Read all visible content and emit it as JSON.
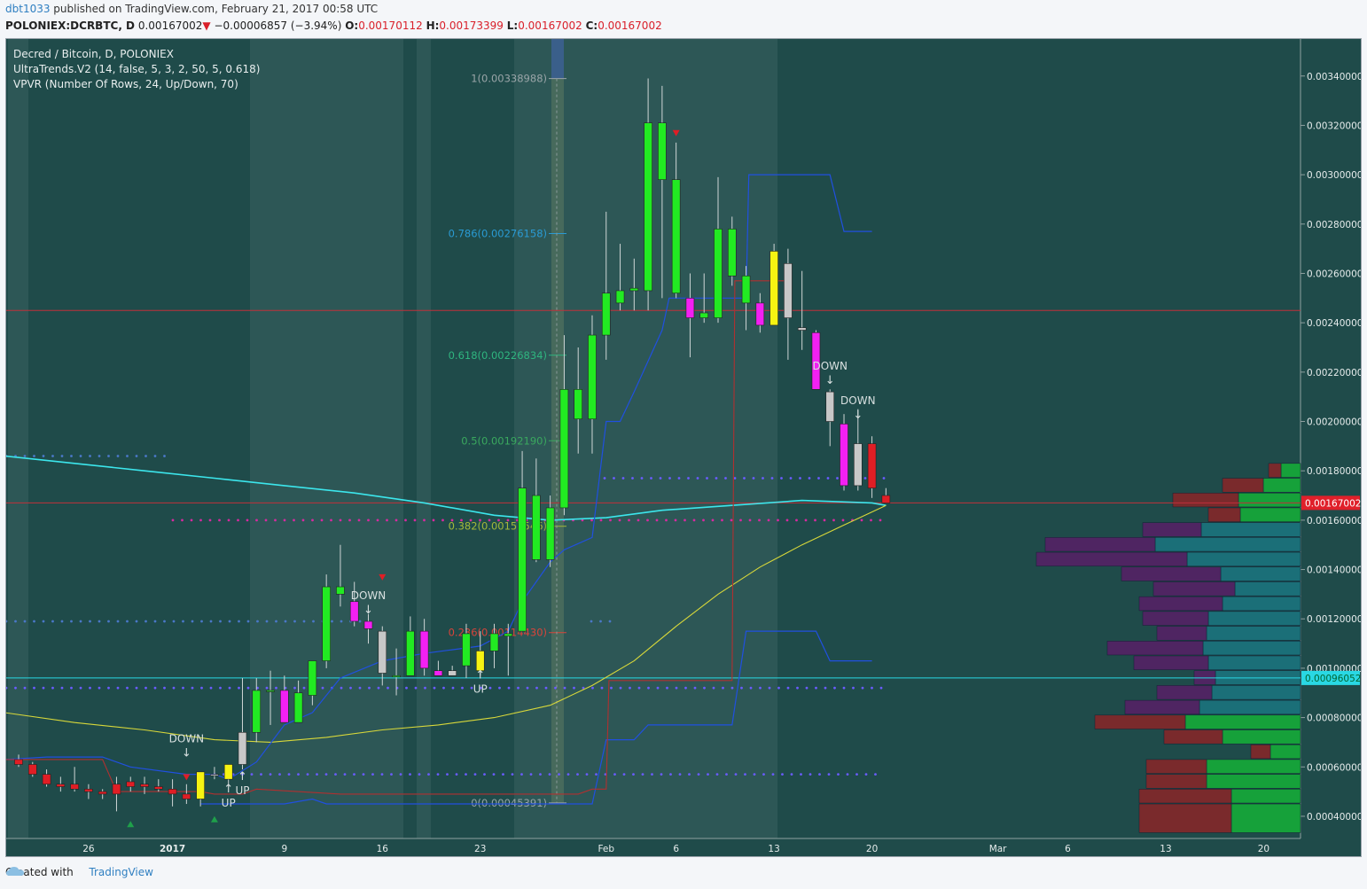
{
  "header": {
    "user": "dbt1033",
    "published_text": " published on TradingView.com, February 21, 2017 00:58 UTC"
  },
  "ohlc": {
    "symbol": "POLONIEX:DCRBTC, D",
    "last": "0.00167002",
    "change": "−0.00006857 (−3.94%)",
    "o_label": "O:",
    "o": "0.00170112",
    "h_label": "H:",
    "h": "0.00173399",
    "l_label": "L:",
    "l": "0.00167002",
    "c_label": "C:",
    "c": "0.00167002",
    "down_color": "#d9202a"
  },
  "legend": {
    "line1": "Decred / Bitcoin, D, POLONIEX",
    "line2": "UltraTrends.V2 (14, false, 5, 3, 2, 50, 5, 0.618)",
    "line3": "VPVR (Number Of Rows, 24, Up/Down, 70)"
  },
  "footer": {
    "created_with": "Created with",
    "brand": "TradingView"
  },
  "chart_data": {
    "type": "candlestick",
    "y_axis": {
      "min": 0.00031,
      "max": 0.00355,
      "ticks": [
        "0.00340000",
        "0.00320000",
        "0.00300000",
        "0.00280000",
        "0.00260000",
        "0.00240000",
        "0.00220000",
        "0.00200000",
        "0.00180000",
        "0.00160000",
        "0.00140000",
        "0.00120000",
        "0.00100000",
        "0.00080000",
        "0.00060000",
        "0.00040000"
      ],
      "current_price_label": "0.00167002",
      "line_price_label": "0.00096052",
      "current_price_color": "#e0202a",
      "line_price_color": "#29d8e4"
    },
    "x_axis": {
      "labels": [
        {
          "text": "26",
          "day": 5
        },
        {
          "text": "2017",
          "day": 11,
          "bold": true
        },
        {
          "text": "9",
          "day": 19
        },
        {
          "text": "16",
          "day": 26
        },
        {
          "text": "23",
          "day": 33
        },
        {
          "text": "Feb",
          "day": 42
        },
        {
          "text": "6",
          "day": 47
        },
        {
          "text": "13",
          "day": 54
        },
        {
          "text": "20",
          "day": 61
        },
        {
          "text": "Mar",
          "day": 70
        },
        {
          "text": "6",
          "day": 75
        },
        {
          "text": "13",
          "day": 82
        },
        {
          "text": "20",
          "day": 89
        }
      ]
    },
    "candles": [
      {
        "d": 0,
        "o": 0.00063,
        "h": 0.00065,
        "l": 0.0006,
        "c": 0.00061,
        "col": "red"
      },
      {
        "d": 1,
        "o": 0.00061,
        "h": 0.00062,
        "l": 0.00056,
        "c": 0.00057,
        "col": "red"
      },
      {
        "d": 2,
        "o": 0.00057,
        "h": 0.00059,
        "l": 0.00052,
        "c": 0.00053,
        "col": "red"
      },
      {
        "d": 3,
        "o": 0.00053,
        "h": 0.00056,
        "l": 0.0005,
        "c": 0.00052,
        "col": "red"
      },
      {
        "d": 4,
        "o": 0.00053,
        "h": 0.0006,
        "l": 0.0005,
        "c": 0.00051,
        "col": "red"
      },
      {
        "d": 5,
        "o": 0.00051,
        "h": 0.00053,
        "l": 0.00047,
        "c": 0.0005,
        "col": "red"
      },
      {
        "d": 6,
        "o": 0.0005,
        "h": 0.00051,
        "l": 0.00047,
        "c": 0.00049,
        "col": "red"
      },
      {
        "d": 7,
        "o": 0.00053,
        "h": 0.00056,
        "l": 0.00042,
        "c": 0.00049,
        "col": "red"
      },
      {
        "d": 8,
        "o": 0.00052,
        "h": 0.00056,
        "l": 0.0005,
        "c": 0.00054,
        "col": "red"
      },
      {
        "d": 9,
        "o": 0.00053,
        "h": 0.00056,
        "l": 0.00049,
        "c": 0.00052,
        "col": "red"
      },
      {
        "d": 10,
        "o": 0.00052,
        "h": 0.00055,
        "l": 0.0005,
        "c": 0.00051,
        "col": "red"
      },
      {
        "d": 11,
        "o": 0.00051,
        "h": 0.00055,
        "l": 0.00044,
        "c": 0.00049,
        "col": "red"
      },
      {
        "d": 12,
        "o": 0.00049,
        "h": 0.00053,
        "l": 0.00045,
        "c": 0.00047,
        "col": "red"
      },
      {
        "d": 13,
        "o": 0.00047,
        "h": 0.00058,
        "l": 0.00044,
        "c": 0.00058,
        "col": "yellow"
      },
      {
        "d": 14,
        "o": 0.00057,
        "h": 0.0006,
        "l": 0.00055,
        "c": 0.00057,
        "col": "grey"
      },
      {
        "d": 15,
        "o": 0.00055,
        "h": 0.00061,
        "l": 0.00053,
        "c": 0.00061,
        "col": "yellow"
      },
      {
        "d": 16,
        "o": 0.00061,
        "h": 0.00096,
        "l": 0.00059,
        "c": 0.00074,
        "col": "grey"
      },
      {
        "d": 17,
        "o": 0.00074,
        "h": 0.00096,
        "l": 0.0007,
        "c": 0.00091,
        "col": "green"
      },
      {
        "d": 18,
        "o": 0.00091,
        "h": 0.00099,
        "l": 0.00077,
        "c": 0.00091,
        "col": "green"
      },
      {
        "d": 19,
        "o": 0.00091,
        "h": 0.00097,
        "l": 0.00078,
        "c": 0.00078,
        "col": "magenta"
      },
      {
        "d": 20,
        "o": 0.00078,
        "h": 0.00095,
        "l": 0.00078,
        "c": 0.0009,
        "col": "green"
      },
      {
        "d": 21,
        "o": 0.00089,
        "h": 0.001,
        "l": 0.00085,
        "c": 0.00103,
        "col": "green"
      },
      {
        "d": 22,
        "o": 0.00103,
        "h": 0.00138,
        "l": 0.001,
        "c": 0.00133,
        "col": "green"
      },
      {
        "d": 23,
        "o": 0.00133,
        "h": 0.0015,
        "l": 0.00125,
        "c": 0.0013,
        "col": "green"
      },
      {
        "d": 24,
        "o": 0.00127,
        "h": 0.00135,
        "l": 0.00117,
        "c": 0.00119,
        "col": "magenta"
      },
      {
        "d": 25,
        "o": 0.00119,
        "h": 0.00122,
        "l": 0.0011,
        "c": 0.00116,
        "col": "magenta"
      },
      {
        "d": 26,
        "o": 0.00115,
        "h": 0.00117,
        "l": 0.00093,
        "c": 0.00098,
        "col": "grey"
      },
      {
        "d": 27,
        "o": 0.00097,
        "h": 0.00108,
        "l": 0.00089,
        "c": 0.00097,
        "col": "green"
      },
      {
        "d": 28,
        "o": 0.00097,
        "h": 0.00121,
        "l": 0.00097,
        "c": 0.00115,
        "col": "green"
      },
      {
        "d": 29,
        "o": 0.00115,
        "h": 0.0012,
        "l": 0.00097,
        "c": 0.001,
        "col": "magenta"
      },
      {
        "d": 30,
        "o": 0.00099,
        "h": 0.00103,
        "l": 0.00097,
        "c": 0.00097,
        "col": "magenta"
      },
      {
        "d": 31,
        "o": 0.00099,
        "h": 0.00101,
        "l": 0.00097,
        "c": 0.00097,
        "col": "grey"
      },
      {
        "d": 32,
        "o": 0.00101,
        "h": 0.00118,
        "l": 0.00096,
        "c": 0.00114,
        "col": "green"
      },
      {
        "d": 33,
        "o": 0.00099,
        "h": 0.00115,
        "l": 0.00097,
        "c": 0.00107,
        "col": "yellow"
      },
      {
        "d": 34,
        "o": 0.00107,
        "h": 0.00118,
        "l": 0.001,
        "c": 0.00114,
        "col": "green"
      },
      {
        "d": 35,
        "o": 0.00113,
        "h": 0.00118,
        "l": 0.00097,
        "c": 0.00114,
        "col": "green"
      },
      {
        "d": 36,
        "o": 0.00115,
        "h": 0.00188,
        "l": 0.00115,
        "c": 0.00173,
        "col": "green"
      },
      {
        "d": 37,
        "o": 0.0017,
        "h": 0.00185,
        "l": 0.00143,
        "c": 0.00144,
        "col": "green"
      },
      {
        "d": 38,
        "o": 0.00144,
        "h": 0.0017,
        "l": 0.00141,
        "c": 0.00165,
        "col": "green"
      },
      {
        "d": 39,
        "o": 0.00165,
        "h": 0.00235,
        "l": 0.00162,
        "c": 0.00213,
        "col": "green"
      },
      {
        "d": 40,
        "o": 0.00201,
        "h": 0.0023,
        "l": 0.00187,
        "c": 0.00213,
        "col": "green"
      },
      {
        "d": 41,
        "o": 0.00201,
        "h": 0.00243,
        "l": 0.00187,
        "c": 0.00235,
        "col": "green"
      },
      {
        "d": 42,
        "o": 0.00235,
        "h": 0.00285,
        "l": 0.00225,
        "c": 0.00252,
        "col": "green"
      },
      {
        "d": 43,
        "o": 0.00248,
        "h": 0.00272,
        "l": 0.00245,
        "c": 0.00253,
        "col": "green"
      },
      {
        "d": 44,
        "o": 0.00253,
        "h": 0.00266,
        "l": 0.00245,
        "c": 0.00254,
        "col": "green"
      },
      {
        "d": 45,
        "o": 0.00253,
        "h": 0.00339,
        "l": 0.00245,
        "c": 0.00321,
        "col": "green"
      },
      {
        "d": 46,
        "o": 0.00321,
        "h": 0.00336,
        "l": 0.0025,
        "c": 0.00298,
        "col": "green"
      },
      {
        "d": 47,
        "o": 0.00298,
        "h": 0.00313,
        "l": 0.0025,
        "c": 0.00252,
        "col": "green"
      },
      {
        "d": 48,
        "o": 0.0025,
        "h": 0.0026,
        "l": 0.00226,
        "c": 0.00242,
        "col": "magenta"
      },
      {
        "d": 49,
        "o": 0.00244,
        "h": 0.0026,
        "l": 0.0024,
        "c": 0.00242,
        "col": "green"
      },
      {
        "d": 50,
        "o": 0.00242,
        "h": 0.00299,
        "l": 0.0024,
        "c": 0.00278,
        "col": "green"
      },
      {
        "d": 51,
        "o": 0.00278,
        "h": 0.00283,
        "l": 0.00255,
        "c": 0.00259,
        "col": "green"
      },
      {
        "d": 52,
        "o": 0.00259,
        "h": 0.00263,
        "l": 0.00237,
        "c": 0.00248,
        "col": "green"
      },
      {
        "d": 53,
        "o": 0.00248,
        "h": 0.00252,
        "l": 0.00236,
        "c": 0.00239,
        "col": "magenta"
      },
      {
        "d": 54,
        "o": 0.00239,
        "h": 0.00272,
        "l": 0.00239,
        "c": 0.00269,
        "col": "yellow"
      },
      {
        "d": 55,
        "o": 0.00264,
        "h": 0.0027,
        "l": 0.00225,
        "c": 0.00242,
        "col": "grey"
      },
      {
        "d": 56,
        "o": 0.00238,
        "h": 0.00261,
        "l": 0.00229,
        "c": 0.00237,
        "col": "grey"
      },
      {
        "d": 57,
        "o": 0.00236,
        "h": 0.00237,
        "l": 0.00213,
        "c": 0.00213,
        "col": "magenta"
      },
      {
        "d": 58,
        "o": 0.00212,
        "h": 0.00213,
        "l": 0.0019,
        "c": 0.002,
        "col": "grey"
      },
      {
        "d": 59,
        "o": 0.00199,
        "h": 0.00203,
        "l": 0.00172,
        "c": 0.00174,
        "col": "magenta"
      },
      {
        "d": 60,
        "o": 0.00191,
        "h": 0.00205,
        "l": 0.00172,
        "c": 0.00174,
        "col": "grey"
      },
      {
        "d": 61,
        "o": 0.00191,
        "h": 0.00194,
        "l": 0.00169,
        "c": 0.00173,
        "col": "red"
      },
      {
        "d": 62,
        "o": 0.0017,
        "h": 0.00173,
        "l": 0.00167,
        "c": 0.00167,
        "col": "red"
      }
    ],
    "fib_levels": [
      {
        "label": "1(0.00338988)",
        "value": 0.00338988,
        "color": "#9aa5a8"
      },
      {
        "label": "0.786(0.00276158)",
        "value": 0.00276158,
        "color": "#2a9bd4"
      },
      {
        "label": "0.618(0.00226834)",
        "value": 0.00226834,
        "color": "#2fb57f"
      },
      {
        "label": "0.5(0.00192190)",
        "value": 0.0019219,
        "color": "#3aa85e"
      },
      {
        "label": "0.382(0.00157546)",
        "value": 0.00157546,
        "color": "#a3b83a"
      },
      {
        "label": "0.236(0.00114430)",
        "value": 0.0011443,
        "color": "#d9443a"
      },
      {
        "label": "0(0.00045391)",
        "value": 0.00045391,
        "color": "#9aa5a8"
      }
    ],
    "signals": [
      {
        "text": "DOWN",
        "d": 12,
        "v": 0.0007,
        "arrow": "down"
      },
      {
        "text": "UP",
        "d": 15,
        "v": 0.00044,
        "arrow": "up"
      },
      {
        "text": "UP",
        "d": 16,
        "v": 0.00049,
        "arrow": "up"
      },
      {
        "text": "DOWN",
        "d": 25,
        "v": 0.00128,
        "arrow": "down"
      },
      {
        "text": "UP",
        "d": 33,
        "v": 0.0009,
        "arrow": "up"
      },
      {
        "text": "DOWN",
        "d": 58,
        "v": 0.00221,
        "arrow": "down"
      },
      {
        "text": "DOWN",
        "d": 60,
        "v": 0.00207,
        "arrow": "down"
      }
    ],
    "volume_profile": [
      {
        "lo": 0.00033,
        "hi": 0.00045,
        "up": 0.0,
        "down": 0.0,
        "up_w": 78,
        "down_w": 104,
        "kind": "gr"
      },
      {
        "lo": 0.00045,
        "hi": 0.00051,
        "up": 0,
        "down": 0,
        "up_w": 78,
        "down_w": 104,
        "kind": "gr"
      },
      {
        "lo": 0.00051,
        "hi": 0.00057,
        "up": 0,
        "down": 0,
        "up_w": 106,
        "down_w": 68,
        "kind": "gr"
      },
      {
        "lo": 0.00057,
        "hi": 0.00063,
        "up": 0,
        "down": 0,
        "up_w": 106,
        "down_w": 68,
        "kind": "gr"
      },
      {
        "lo": 0.00063,
        "hi": 0.00069,
        "up": 0,
        "down": 0,
        "up_w": 34,
        "down_w": 22,
        "kind": "gr"
      },
      {
        "lo": 0.00069,
        "hi": 0.00075,
        "up": 0,
        "down": 0,
        "up_w": 88,
        "down_w": 66,
        "kind": "gr"
      },
      {
        "lo": 0.00075,
        "hi": 0.00081,
        "up": 0,
        "down": 0,
        "up_w": 130,
        "down_w": 102,
        "kind": "gr"
      },
      {
        "lo": 0.00081,
        "hi": 0.00087,
        "up": 0,
        "down": 0,
        "up_w": 114,
        "down_w": 84,
        "kind": "bp"
      },
      {
        "lo": 0.00087,
        "hi": 0.00093,
        "up": 0,
        "down": 0,
        "up_w": 100,
        "down_w": 62,
        "kind": "bp"
      },
      {
        "lo": 0.00093,
        "hi": 0.00099,
        "up": 0,
        "down": 0,
        "up_w": 96,
        "down_w": 24,
        "kind": "bp"
      },
      {
        "lo": 0.00099,
        "hi": 0.00105,
        "up": 0,
        "down": 0,
        "up_w": 104,
        "down_w": 84,
        "kind": "bp"
      },
      {
        "lo": 0.00105,
        "hi": 0.00111,
        "up": 0,
        "down": 0,
        "up_w": 110,
        "down_w": 108,
        "kind": "bp"
      },
      {
        "lo": 0.00111,
        "hi": 0.00117,
        "up": 0,
        "down": 0,
        "up_w": 106,
        "down_w": 56,
        "kind": "bp"
      },
      {
        "lo": 0.00117,
        "hi": 0.00123,
        "up": 0,
        "down": 0,
        "up_w": 104,
        "down_w": 74,
        "kind": "bp"
      },
      {
        "lo": 0.00123,
        "hi": 0.00129,
        "up": 0,
        "down": 0,
        "up_w": 88,
        "down_w": 94,
        "kind": "bp"
      },
      {
        "lo": 0.00129,
        "hi": 0.00135,
        "up": 0,
        "down": 0,
        "up_w": 74,
        "down_w": 92,
        "kind": "bp"
      },
      {
        "lo": 0.00135,
        "hi": 0.00141,
        "up": 0,
        "down": 0,
        "up_w": 90,
        "down_w": 112,
        "kind": "bp"
      },
      {
        "lo": 0.00141,
        "hi": 0.00147,
        "up": 0,
        "down": 0,
        "up_w": 128,
        "down_w": 170,
        "kind": "bp"
      },
      {
        "lo": 0.00147,
        "hi": 0.00153,
        "up": 0,
        "down": 0,
        "up_w": 164,
        "down_w": 124,
        "kind": "bp"
      },
      {
        "lo": 0.00153,
        "hi": 0.00159,
        "up": 0,
        "down": 0,
        "up_w": 112,
        "down_w": 66,
        "kind": "bp"
      },
      {
        "lo": 0.00159,
        "hi": 0.00165,
        "up": 0,
        "down": 0,
        "up_w": 68,
        "down_w": 36,
        "kind": "gr"
      },
      {
        "lo": 0.00165,
        "hi": 0.00171,
        "up": 0,
        "down": 0,
        "up_w": 70,
        "down_w": 74,
        "kind": "gr"
      },
      {
        "lo": 0.00171,
        "hi": 0.00177,
        "up": 0,
        "down": 0,
        "up_w": 42,
        "down_w": 46,
        "kind": "gr"
      },
      {
        "lo": 0.00177,
        "hi": 0.00183,
        "up": 0,
        "down": 0,
        "up_w": 22,
        "down_w": 14,
        "kind": "gr"
      }
    ]
  }
}
